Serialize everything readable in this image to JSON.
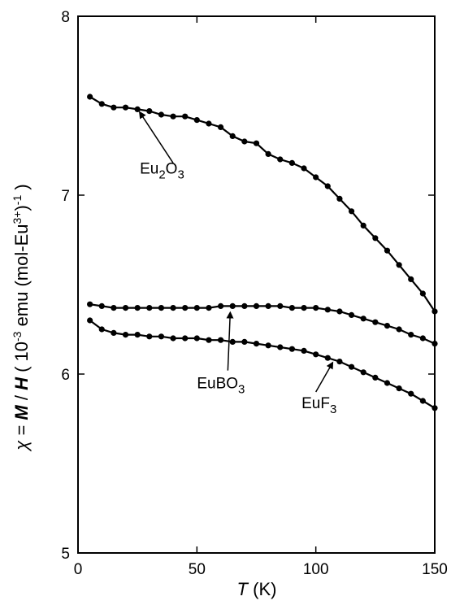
{
  "chart_data": {
    "type": "line",
    "xlim": [
      0,
      150
    ],
    "ylim": [
      5,
      8
    ],
    "x_ticks": [
      0,
      50,
      100,
      150
    ],
    "y_ticks": [
      5,
      6,
      7,
      8
    ],
    "x_tick_labels": [
      "0",
      "50",
      "100",
      "150"
    ],
    "y_tick_labels": [
      "5",
      "6",
      "7",
      "8"
    ],
    "xlabel": {
      "var": "T",
      "unit": " (K)"
    },
    "ylabel": {
      "chi": "χ",
      "eq": " = ",
      "M": "M",
      "slash": " / ",
      "H": "H",
      "open": " ( 10",
      "exp1": "-3",
      "mid": " emu (mol-Eu",
      "exp2": "3+",
      "close1": ")",
      "exp3": "-1",
      "close2": " )"
    },
    "grid": false,
    "legend": "none",
    "line_color": "#000000",
    "series": [
      {
        "points": [
          [
            5,
            7.55
          ],
          [
            10,
            7.51
          ],
          [
            15,
            7.49
          ],
          [
            20,
            7.49
          ],
          [
            25,
            7.48
          ],
          [
            30,
            7.47
          ],
          [
            35,
            7.45
          ],
          [
            40,
            7.44
          ],
          [
            45,
            7.44
          ],
          [
            50,
            7.42
          ],
          [
            55,
            7.4
          ],
          [
            60,
            7.38
          ],
          [
            65,
            7.33
          ],
          [
            70,
            7.3
          ],
          [
            75,
            7.29
          ],
          [
            80,
            7.23
          ],
          [
            85,
            7.2
          ],
          [
            90,
            7.18
          ],
          [
            95,
            7.15
          ],
          [
            100,
            7.1
          ],
          [
            105,
            7.05
          ],
          [
            110,
            6.98
          ],
          [
            115,
            6.91
          ],
          [
            120,
            6.83
          ],
          [
            125,
            6.76
          ],
          [
            130,
            6.69
          ],
          [
            135,
            6.61
          ],
          [
            140,
            6.53
          ],
          [
            145,
            6.45
          ],
          [
            150,
            6.35
          ]
        ]
      },
      {
        "points": [
          [
            5,
            6.39
          ],
          [
            10,
            6.38
          ],
          [
            15,
            6.37
          ],
          [
            20,
            6.37
          ],
          [
            25,
            6.37
          ],
          [
            30,
            6.37
          ],
          [
            35,
            6.37
          ],
          [
            40,
            6.37
          ],
          [
            45,
            6.37
          ],
          [
            50,
            6.37
          ],
          [
            55,
            6.37
          ],
          [
            60,
            6.38
          ],
          [
            65,
            6.38
          ],
          [
            70,
            6.38
          ],
          [
            75,
            6.38
          ],
          [
            80,
            6.38
          ],
          [
            85,
            6.38
          ],
          [
            90,
            6.37
          ],
          [
            95,
            6.37
          ],
          [
            100,
            6.37
          ],
          [
            105,
            6.36
          ],
          [
            110,
            6.35
          ],
          [
            115,
            6.33
          ],
          [
            120,
            6.31
          ],
          [
            125,
            6.29
          ],
          [
            130,
            6.27
          ],
          [
            135,
            6.25
          ],
          [
            140,
            6.22
          ],
          [
            145,
            6.2
          ],
          [
            150,
            6.17
          ]
        ]
      },
      {
        "points": [
          [
            5,
            6.3
          ],
          [
            10,
            6.25
          ],
          [
            15,
            6.23
          ],
          [
            20,
            6.22
          ],
          [
            25,
            6.22
          ],
          [
            30,
            6.21
          ],
          [
            35,
            6.21
          ],
          [
            40,
            6.2
          ],
          [
            45,
            6.2
          ],
          [
            50,
            6.2
          ],
          [
            55,
            6.19
          ],
          [
            60,
            6.19
          ],
          [
            65,
            6.18
          ],
          [
            70,
            6.18
          ],
          [
            75,
            6.17
          ],
          [
            80,
            6.16
          ],
          [
            85,
            6.15
          ],
          [
            90,
            6.14
          ],
          [
            95,
            6.13
          ],
          [
            100,
            6.11
          ],
          [
            105,
            6.09
          ],
          [
            110,
            6.07
          ],
          [
            115,
            6.04
          ],
          [
            120,
            6.01
          ],
          [
            125,
            5.98
          ],
          [
            130,
            5.95
          ],
          [
            135,
            5.92
          ],
          [
            140,
            5.89
          ],
          [
            145,
            5.85
          ],
          [
            150,
            5.81
          ]
        ]
      }
    ],
    "annotations": [
      {
        "name": "Eu2O3",
        "base": "Eu",
        "sub1": "2",
        "mid": "O",
        "sub2": "3",
        "arrow_from": [
          40,
          7.18
        ],
        "arrow_to": [
          26,
          7.49
        ],
        "text_at": [
          26,
          7.12
        ]
      },
      {
        "name": "EuBO3",
        "base": "EuBO",
        "sub1": "",
        "mid": "",
        "sub2": "3",
        "arrow_from": [
          63,
          6.02
        ],
        "arrow_to": [
          64,
          6.37
        ],
        "text_at": [
          50,
          5.92
        ]
      },
      {
        "name": "EuF3",
        "base": "EuF",
        "sub1": "",
        "mid": "",
        "sub2": "3",
        "arrow_from": [
          100,
          5.9
        ],
        "arrow_to": [
          107,
          6.09
        ],
        "text_at": [
          94,
          5.81
        ]
      }
    ]
  }
}
